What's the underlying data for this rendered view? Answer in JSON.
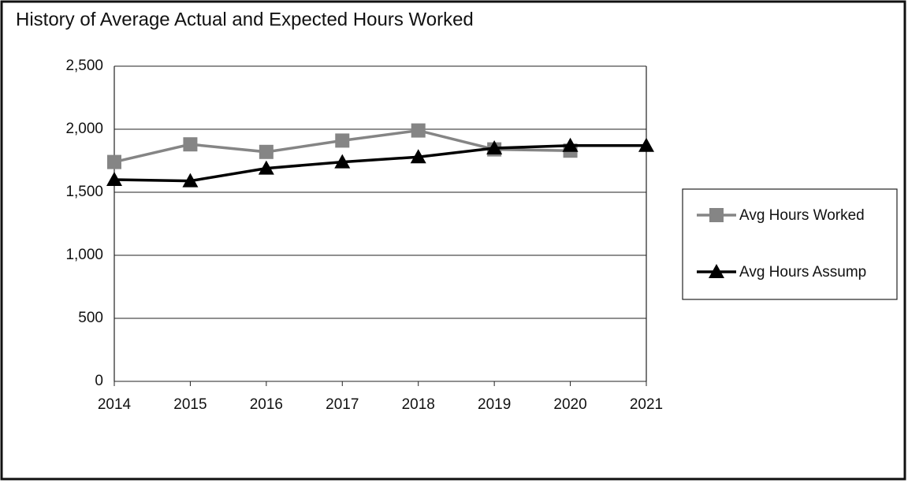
{
  "chart_data": {
    "type": "line",
    "title": "History of Average Actual and Expected Hours Worked",
    "categories": [
      "2014",
      "2015",
      "2016",
      "2017",
      "2018",
      "2019",
      "2020",
      "2021"
    ],
    "series": [
      {
        "name": "Avg Hours Worked",
        "color": "#858585",
        "marker": "square",
        "values": [
          1740,
          1880,
          1820,
          1910,
          1990,
          1840,
          1830,
          null
        ]
      },
      {
        "name": "Avg Hours Assump",
        "color": "#000000",
        "marker": "triangle",
        "values": [
          1600,
          1590,
          1690,
          1740,
          1780,
          1850,
          1870,
          1870
        ]
      }
    ],
    "ylim": [
      0,
      2500
    ],
    "yticks": [
      0,
      500,
      {
        "value": 1000,
        "label": "1,000"
      },
      {
        "value": 1500,
        "label": "1,500"
      },
      {
        "value": 2000,
        "label": "2,000"
      },
      {
        "value": 2500,
        "label": "2,500"
      }
    ],
    "grid": true,
    "legend": "right"
  }
}
